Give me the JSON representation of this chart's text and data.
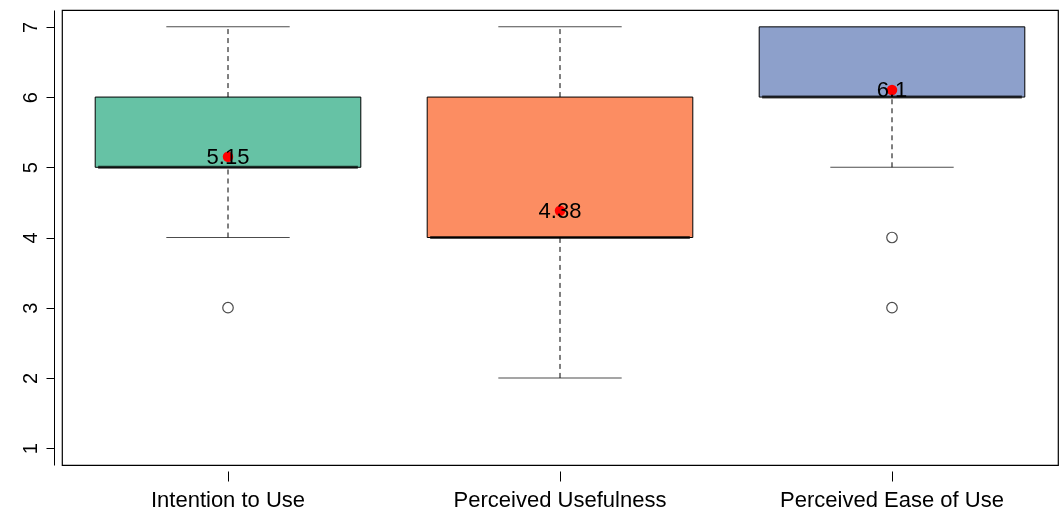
{
  "chart_data": {
    "type": "box",
    "categories": [
      "Intention to Use",
      "Perceived Usefulness",
      "Perceived Ease of Use"
    ],
    "colors": [
      "#66c2a5",
      "#fc8d62",
      "#8da0cb"
    ],
    "boxes": [
      {
        "low": 4,
        "q1": 5,
        "median": 5,
        "q3": 6,
        "high": 7,
        "mean": 5.15,
        "outliers": [
          3
        ]
      },
      {
        "low": 2,
        "q1": 4,
        "median": 4,
        "q3": 6,
        "high": 7,
        "mean": 4.38
      },
      {
        "low": 5,
        "q1": 6,
        "median": 6,
        "q3": 7,
        "high": 7,
        "mean": 6.1,
        "outliers": [
          4,
          3
        ]
      }
    ],
    "annotations": [
      "5.15",
      "4.38",
      "6.1"
    ],
    "ylim": [
      0.76,
      7.24
    ],
    "yticks": [
      1,
      2,
      3,
      4,
      5,
      6,
      7
    ]
  }
}
